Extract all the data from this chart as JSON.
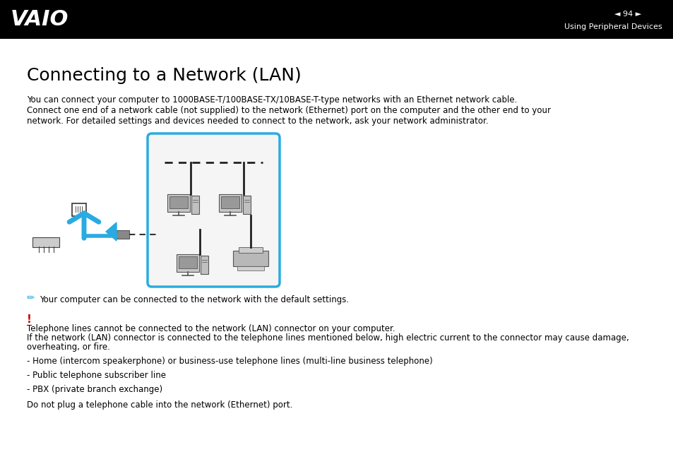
{
  "bg_color": "#ffffff",
  "header_bg": "#000000",
  "header_text_color": "#ffffff",
  "page_num": "◄ 94 ►",
  "section_title": "Using Peripheral Devices",
  "title": "Connecting to a Network (LAN)",
  "title_fontsize": 18,
  "body_text1": "You can connect your computer to 1000BASE-T/100BASE-TX/10BASE-T-type networks with an Ethernet network cable.",
  "body_text2": "Connect one end of a network cable (not supplied) to the network (Ethernet) port on the computer and the other end to your",
  "body_text3": "network. For detailed settings and devices needed to connect to the network, ask your network administrator.",
  "body_fontsize": 8.5,
  "note_text": "Your computer can be connected to the network with the default settings.",
  "warning_line1": "Telephone lines cannot be connected to the network (LAN) connector on your computer.",
  "warning_line2": "If the network (LAN) connector is connected to the telephone lines mentioned below, high electric current to the connector may cause damage,",
  "warning_line3": "overheating, or fire.",
  "bullet1": "- Home (intercom speakerphone) or business-use telephone lines (multi-line business telephone)",
  "bullet2": "- Public telephone subscriber line",
  "bullet3": "- PBX (private branch exchange)",
  "final_note": "Do not plug a telephone cable into the network (Ethernet) port.",
  "cyan_color": "#29abe2",
  "red_color": "#cc0000"
}
